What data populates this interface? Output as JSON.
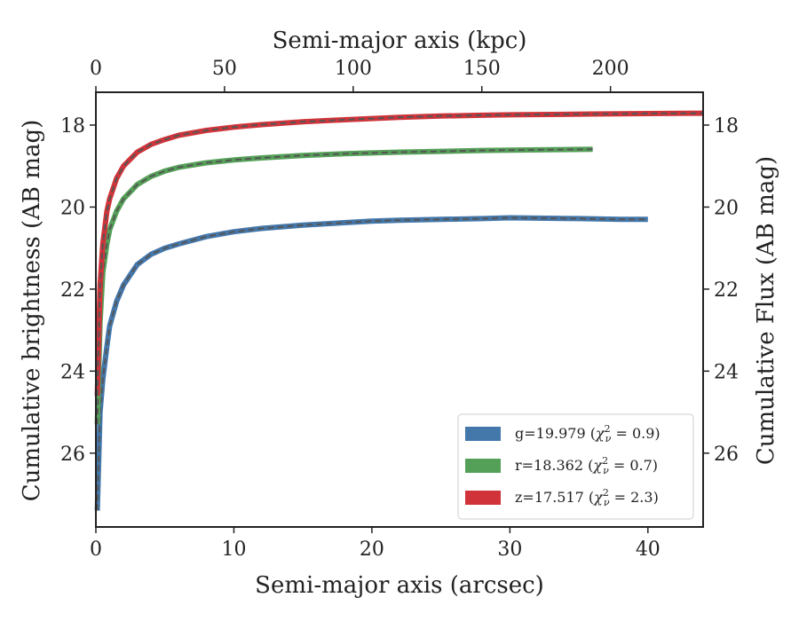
{
  "chart_data": {
    "type": "line",
    "xlabel": "Semi-major axis (arcsec)",
    "ylabel": "Cumulative brightness (AB mag)",
    "top_xlabel": "Semi-major axis (kpc)",
    "right_ylabel": "Cumulative Flux (AB mag)",
    "xlim": [
      0,
      44
    ],
    "ylim": [
      27.8,
      17.2
    ],
    "y_inverted": true,
    "top_xlim": [
      0,
      236
    ],
    "grid": false,
    "legend_position": "lower-right",
    "x_ticks": [
      0,
      10,
      20,
      30,
      40
    ],
    "y_ticks": [
      18,
      20,
      22,
      24,
      26
    ],
    "top_x_ticks": [
      0,
      50,
      100,
      150,
      200
    ],
    "series": [
      {
        "name": "g",
        "label_value": "19.979",
        "chi2": "0.9",
        "color": "#4477aa",
        "x": [
          0.1,
          0.3,
          0.5,
          0.8,
          1.0,
          1.5,
          2,
          3,
          4,
          5,
          6,
          8,
          10,
          12,
          15,
          18,
          20,
          22,
          25,
          28,
          30,
          32,
          35,
          38,
          40
        ],
        "values": [
          27.4,
          25.0,
          24.2,
          23.4,
          22.9,
          22.3,
          21.9,
          21.4,
          21.15,
          21.0,
          20.9,
          20.72,
          20.6,
          20.52,
          20.44,
          20.38,
          20.34,
          20.32,
          20.3,
          20.28,
          20.26,
          20.27,
          20.28,
          20.3,
          20.3
        ]
      },
      {
        "name": "r",
        "label_value": "18.362",
        "chi2": "0.7",
        "color": "#55a058",
        "x": [
          0.1,
          0.3,
          0.5,
          0.8,
          1.0,
          1.5,
          2,
          3,
          4,
          5,
          6,
          8,
          10,
          12,
          15,
          18,
          20,
          22,
          25,
          28,
          30,
          33,
          36
        ],
        "values": [
          25.3,
          22.8,
          21.6,
          20.9,
          20.55,
          20.1,
          19.8,
          19.45,
          19.25,
          19.12,
          19.03,
          18.92,
          18.85,
          18.8,
          18.74,
          18.7,
          18.68,
          18.66,
          18.64,
          18.62,
          18.61,
          18.6,
          18.59
        ]
      },
      {
        "name": "z",
        "label_value": "17.517",
        "chi2": "2.3",
        "color": "#d0343a",
        "x": [
          0.1,
          0.3,
          0.5,
          0.8,
          1.0,
          1.5,
          2,
          3,
          4,
          5,
          6,
          8,
          10,
          12,
          15,
          18,
          20,
          22,
          25,
          28,
          30,
          33,
          36,
          40,
          44
        ],
        "values": [
          24.6,
          21.9,
          20.9,
          20.1,
          19.8,
          19.3,
          19.0,
          18.66,
          18.47,
          18.35,
          18.25,
          18.13,
          18.05,
          17.99,
          17.92,
          17.87,
          17.84,
          17.81,
          17.78,
          17.76,
          17.75,
          17.74,
          17.73,
          17.72,
          17.71
        ]
      }
    ],
    "legend_entries": [
      {
        "label": "g=19.979 ",
        "chi2_text": "0.9",
        "color": "#4477aa"
      },
      {
        "label": "r=18.362 ",
        "chi2_text": "0.7",
        "color": "#55a058"
      },
      {
        "label": "z=17.517 ",
        "chi2_text": "2.3",
        "color": "#d0343a"
      }
    ],
    "model_line_color": "#555555"
  }
}
